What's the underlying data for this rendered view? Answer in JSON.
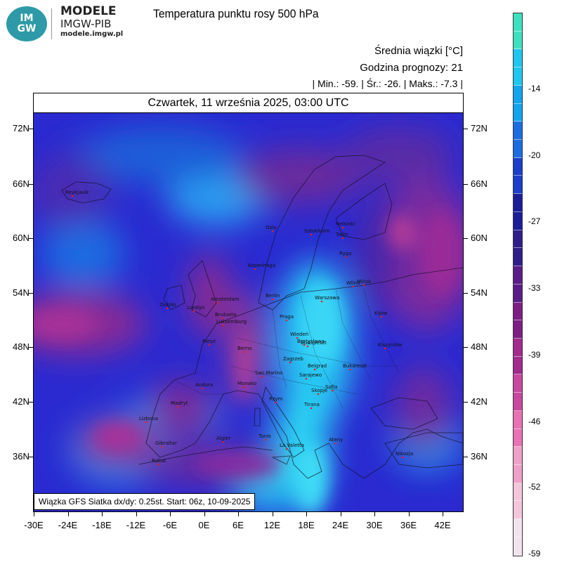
{
  "header": {
    "logo_top": "IM",
    "logo_bottom": "GW",
    "org_name": "MODELE",
    "org_sub": "IMGW-PIB",
    "org_url": "modele.imgw.pl",
    "title": "Temperatura punktu rosy 500 hPa"
  },
  "info": {
    "mean": "Średnia wiązki [°C]",
    "forecast_hour": "Godzina prognozy: 21",
    "stats": "| Min.:    -59. | Śr.:    -26. | Maks.:   -7.3 |"
  },
  "map": {
    "date": "Czwartek, 11 września 2025, 03:00 UTC",
    "footer": "Wiązka GFS Siatka dx/dy: 0.25st. Start: 06z, 10-09-2025",
    "lat_labels": [
      "72N",
      "66N",
      "60N",
      "54N",
      "48N",
      "42N",
      "36N"
    ],
    "lon_labels": [
      "-30E",
      "-24E",
      "-18E",
      "-12E",
      "-6E",
      "0E",
      "6E",
      "12E",
      "18E",
      "24E",
      "30E",
      "36E",
      "42E"
    ],
    "cities": [
      {
        "name": "Reykjavik"
      },
      {
        "name": "Oslo"
      },
      {
        "name": "Sztokholm"
      },
      {
        "name": "Helsinki"
      },
      {
        "name": "Tallin"
      },
      {
        "name": "Ryga"
      },
      {
        "name": "Kopenhaga"
      },
      {
        "name": "Wilno"
      },
      {
        "name": "Mińsk"
      },
      {
        "name": "Dublin"
      },
      {
        "name": "Londyn"
      },
      {
        "name": "Amsterdam"
      },
      {
        "name": "Bruksela"
      },
      {
        "name": "Luksemburg"
      },
      {
        "name": "Berlin"
      },
      {
        "name": "Warszawa"
      },
      {
        "name": "Praga"
      },
      {
        "name": "Paryż"
      },
      {
        "name": "Berno"
      },
      {
        "name": "Wiedeń"
      },
      {
        "name": "Bratysława"
      },
      {
        "name": "Budapeszt"
      },
      {
        "name": "Kiszyniów"
      },
      {
        "name": "Kijów"
      },
      {
        "name": "Monako"
      },
      {
        "name": "San Marino"
      },
      {
        "name": "Zagrzeb"
      },
      {
        "name": "Belgrad"
      },
      {
        "name": "Sarajewo"
      },
      {
        "name": "Bukareszt"
      },
      {
        "name": "Sofia"
      },
      {
        "name": "Skopje"
      },
      {
        "name": "Tirana"
      },
      {
        "name": "Andora"
      },
      {
        "name": "Madryt"
      },
      {
        "name": "Lizbona"
      },
      {
        "name": "Rzym"
      },
      {
        "name": "Ateny"
      },
      {
        "name": "Gibraltar"
      },
      {
        "name": "Algier"
      },
      {
        "name": "Tunis"
      },
      {
        "name": "La Valetta"
      },
      {
        "name": "Rabat"
      },
      {
        "name": "Nikozja"
      }
    ]
  },
  "colorbar": {
    "labels": [
      "-14",
      "-20",
      "-27",
      "-33",
      "-39",
      "-46",
      "-52",
      "-59"
    ],
    "colors_top_to_bottom": [
      "#3fe0c0",
      "#1fc6f0",
      "#12a4ec",
      "#1c6ee0",
      "#1a3fc8",
      "#1b1e98",
      "#2f1e8a",
      "#5a1d88",
      "#7e1e84",
      "#a32a8e",
      "#c8489e",
      "#e872b4",
      "#f0a0c8",
      "#f4c6dc",
      "#f2e4ec"
    ]
  }
}
